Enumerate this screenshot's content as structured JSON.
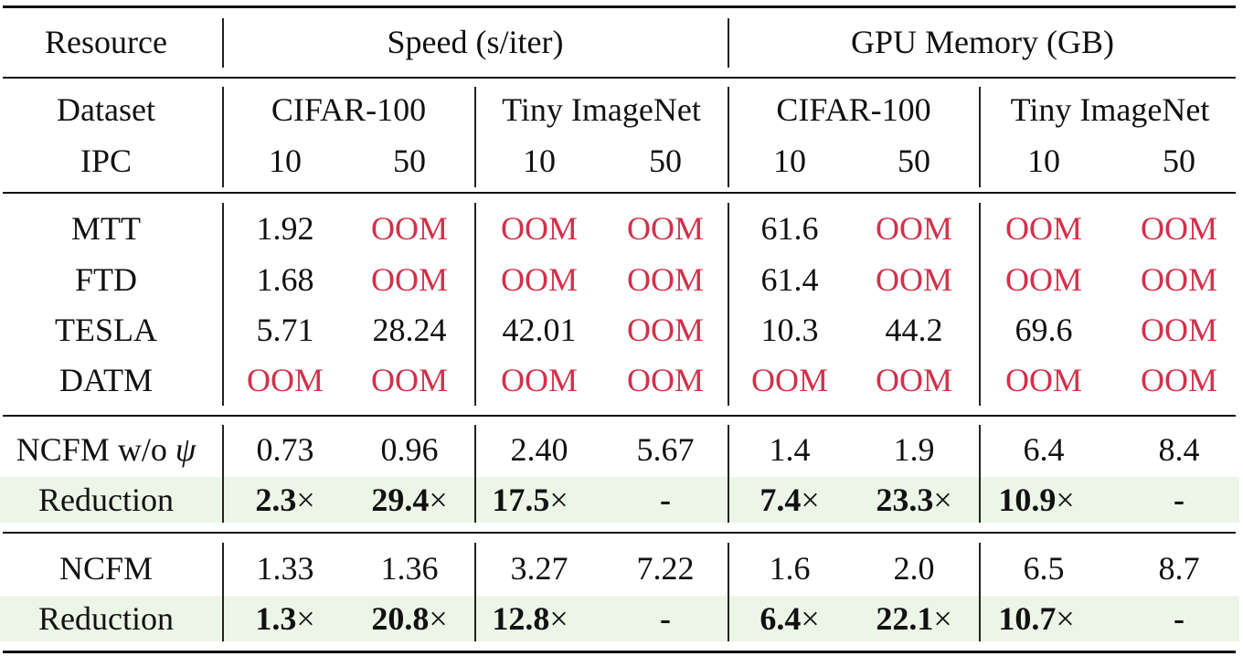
{
  "colors": {
    "oom": "#d3304a",
    "highlight": "#ecf6e6"
  },
  "header": {
    "resource": "Resource",
    "speed": "Speed (s/iter)",
    "memory": "GPU Memory (GB)",
    "dataset_label": "Dataset",
    "ipc_label": "IPC",
    "datasets": [
      "CIFAR-100",
      "Tiny ImageNet",
      "CIFAR-100",
      "Tiny ImageNet"
    ],
    "ipcs": [
      "10",
      "50",
      "10",
      "50",
      "10",
      "50",
      "10",
      "50"
    ]
  },
  "rows": [
    {
      "method": "MTT",
      "values": [
        "1.92",
        "OOM",
        "OOM",
        "OOM",
        "61.6",
        "OOM",
        "OOM",
        "OOM"
      ]
    },
    {
      "method": "FTD",
      "values": [
        "1.68",
        "OOM",
        "OOM",
        "OOM",
        "61.4",
        "OOM",
        "OOM",
        "OOM"
      ]
    },
    {
      "method": "TESLA",
      "values": [
        "5.71",
        "28.24",
        "42.01",
        "OOM",
        "10.3",
        "44.2",
        "69.6",
        "OOM"
      ]
    },
    {
      "method": "DATM",
      "values": [
        "OOM",
        "OOM",
        "OOM",
        "OOM",
        "OOM",
        "OOM",
        "OOM",
        "OOM"
      ]
    }
  ],
  "ncfm_wo": {
    "method": "NCFM w/o ",
    "psi": "ψ",
    "values": [
      "0.73",
      "0.96",
      "2.40",
      "5.67",
      "1.4",
      "1.9",
      "6.4",
      "8.4"
    ]
  },
  "reduction1": {
    "label": "Reduction",
    "values": [
      {
        "num": "2.3",
        "times": "×"
      },
      {
        "num": "29.4",
        "times": "×"
      },
      {
        "num": "17.5",
        "times": "×"
      },
      {
        "num": "-",
        "times": ""
      },
      {
        "num": "7.4",
        "times": "×"
      },
      {
        "num": "23.3",
        "times": "×"
      },
      {
        "num": "10.9",
        "times": "×"
      },
      {
        "num": "-",
        "times": ""
      }
    ]
  },
  "ncfm": {
    "method": "NCFM",
    "values": [
      "1.33",
      "1.36",
      "3.27",
      "7.22",
      "1.6",
      "2.0",
      "6.5",
      "8.7"
    ]
  },
  "reduction2": {
    "label": "Reduction",
    "values": [
      {
        "num": "1.3",
        "times": "×"
      },
      {
        "num": "20.8",
        "times": "×"
      },
      {
        "num": "12.8",
        "times": "×"
      },
      {
        "num": "-",
        "times": ""
      },
      {
        "num": "6.4",
        "times": "×"
      },
      {
        "num": "22.1",
        "times": "×"
      },
      {
        "num": "10.7",
        "times": "×"
      },
      {
        "num": "-",
        "times": ""
      }
    ]
  }
}
